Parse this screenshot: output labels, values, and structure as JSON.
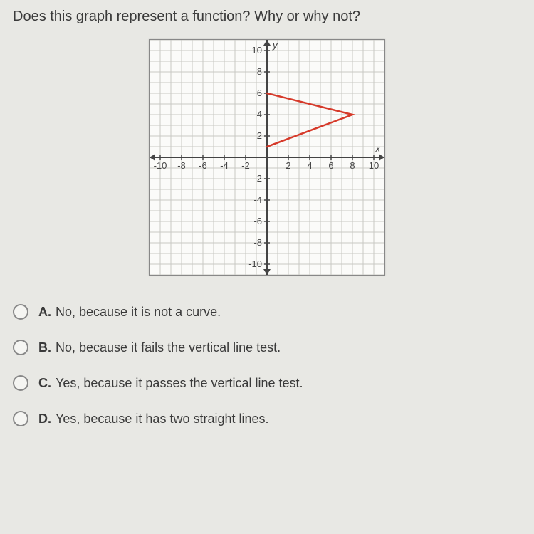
{
  "question": "Does this graph represent a function? Why or why not?",
  "graph": {
    "type": "line-plot",
    "xlim": [
      -11,
      11
    ],
    "ylim": [
      -11,
      11
    ],
    "xtick_step": 2,
    "ytick_step": 2,
    "grid_step": 1,
    "background_color": "#fbfbf9",
    "grid_color": "#c8c8c4",
    "axis_color": "#444444",
    "tick_label_color": "#444444",
    "tick_label_fontsize": 13,
    "x_axis_label": "x",
    "y_axis_label": "y",
    "axis_label_fontsize": 13,
    "arrow_size": 8,
    "x_tick_labels": [
      -10,
      -8,
      -6,
      -4,
      -2,
      2,
      4,
      6,
      8,
      10
    ],
    "y_tick_labels": [
      10,
      8,
      6,
      4,
      2,
      -2,
      -4,
      -6,
      -8,
      -10
    ],
    "series": [
      {
        "points": [
          [
            0,
            6
          ],
          [
            8,
            4
          ],
          [
            0,
            1
          ]
        ],
        "color": "#d63a2a",
        "width": 2.5
      }
    ]
  },
  "choices": [
    {
      "letter": "A.",
      "text": "No, because it is not a curve."
    },
    {
      "letter": "B.",
      "text": "No, because it fails the vertical line test."
    },
    {
      "letter": "C.",
      "text": "Yes, because it passes the vertical line test."
    },
    {
      "letter": "D.",
      "text": "Yes, because it has two straight lines."
    }
  ]
}
